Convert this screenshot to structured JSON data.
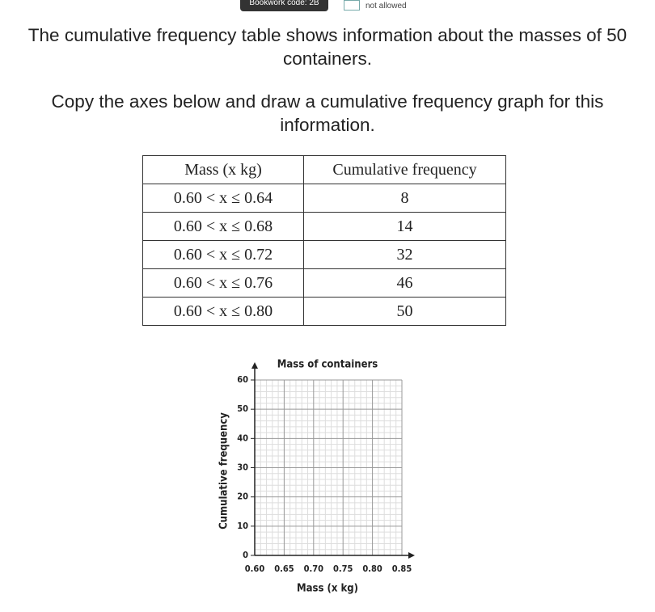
{
  "header": {
    "bookwork": "Bookwork code: 2B",
    "calculator": "not allowed"
  },
  "question": [
    "The cumulative frequency table shows information about the masses of 50 containers.",
    "Copy the axes below and draw a cumulative frequency graph for this information."
  ],
  "table": {
    "headers": [
      "Mass (x kg)",
      "Cumulative frequency"
    ],
    "rows": [
      [
        "0.60 < x ≤ 0.64",
        8
      ],
      [
        "0.60 < x ≤ 0.68",
        14
      ],
      [
        "0.60 < x ≤ 0.72",
        32
      ],
      [
        "0.60 < x ≤ 0.76",
        46
      ],
      [
        "0.60 < x ≤ 0.80",
        50
      ]
    ]
  },
  "chart_data": {
    "type": "line",
    "title": "Mass of containers",
    "x_label": "Mass (x kg)",
    "y_label": "Cumulative frequency",
    "xlim": [
      0.6,
      0.85
    ],
    "xticks": [
      {
        "value": 0.6,
        "label": "0.60"
      },
      {
        "value": 0.65,
        "label": "0.65"
      },
      {
        "value": 0.7,
        "label": "0.70"
      },
      {
        "value": 0.75,
        "label": "0.75"
      },
      {
        "value": 0.8,
        "label": "0.80"
      },
      {
        "value": 0.85,
        "label": "0.85"
      }
    ],
    "ylim": [
      0,
      60
    ],
    "yticks": [
      0,
      10,
      20,
      30,
      40,
      50,
      60
    ],
    "grid": true
  }
}
